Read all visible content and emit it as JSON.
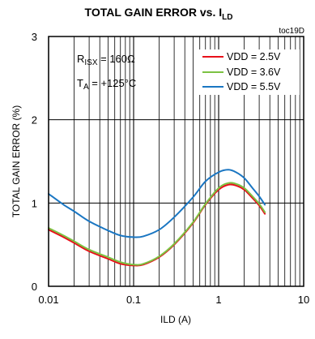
{
  "chart_data": {
    "type": "line",
    "title": "TOTAL GAIN ERROR vs. I",
    "title_sub": "LD",
    "tag": "toc19D",
    "xlabel": "ILD (A)",
    "ylabel": "TOTAL GAIN ERROR  (%)",
    "x_scale": "log",
    "xlim": [
      0.01,
      10
    ],
    "ylim": [
      0,
      3
    ],
    "x_ticks": [
      {
        "value": 0.01,
        "label": "0.01"
      },
      {
        "value": 0.1,
        "label": "0.1"
      },
      {
        "value": 1,
        "label": "1"
      },
      {
        "value": 10,
        "label": "10"
      }
    ],
    "y_ticks": [
      {
        "value": 0,
        "label": "0"
      },
      {
        "value": 1,
        "label": "1"
      },
      {
        "value": 2,
        "label": "2"
      },
      {
        "value": 3,
        "label": "3"
      }
    ],
    "grid": true,
    "legend_position": "top-right",
    "annotations": [
      {
        "main": "R",
        "sub": "ISX",
        "rest": " = 160Ω"
      },
      {
        "main": "T",
        "sub": "A",
        "rest": " = +125°C"
      }
    ],
    "series": [
      {
        "name": "VDD = 2.5V",
        "color": "#e8101a",
        "x": [
          0.01,
          0.015,
          0.02,
          0.03,
          0.05,
          0.07,
          0.1,
          0.13,
          0.2,
          0.3,
          0.5,
          0.7,
          1.0,
          1.3,
          1.6,
          2.0,
          2.5,
          3.0,
          3.5
        ],
        "y": [
          0.68,
          0.59,
          0.52,
          0.42,
          0.33,
          0.27,
          0.25,
          0.26,
          0.35,
          0.5,
          0.76,
          0.98,
          1.16,
          1.22,
          1.21,
          1.16,
          1.06,
          0.97,
          0.87
        ]
      },
      {
        "name": "VDD = 3.6V",
        "color": "#7cc242",
        "x": [
          0.01,
          0.015,
          0.02,
          0.03,
          0.05,
          0.07,
          0.1,
          0.13,
          0.2,
          0.3,
          0.5,
          0.7,
          1.0,
          1.3,
          1.6,
          2.0,
          2.5,
          3.0,
          3.5
        ],
        "y": [
          0.7,
          0.61,
          0.54,
          0.44,
          0.35,
          0.29,
          0.26,
          0.27,
          0.36,
          0.51,
          0.77,
          0.99,
          1.18,
          1.24,
          1.23,
          1.18,
          1.08,
          0.99,
          0.89
        ]
      },
      {
        "name": "VDD = 5.5V",
        "color": "#1a76c2",
        "x": [
          0.01,
          0.015,
          0.02,
          0.03,
          0.05,
          0.07,
          0.1,
          0.13,
          0.2,
          0.3,
          0.5,
          0.7,
          1.0,
          1.3,
          1.6,
          2.0,
          2.5,
          3.0,
          3.5
        ],
        "y": [
          1.11,
          0.98,
          0.9,
          0.78,
          0.67,
          0.61,
          0.59,
          0.6,
          0.68,
          0.83,
          1.07,
          1.26,
          1.37,
          1.4,
          1.37,
          1.3,
          1.18,
          1.08,
          0.98
        ]
      }
    ]
  }
}
